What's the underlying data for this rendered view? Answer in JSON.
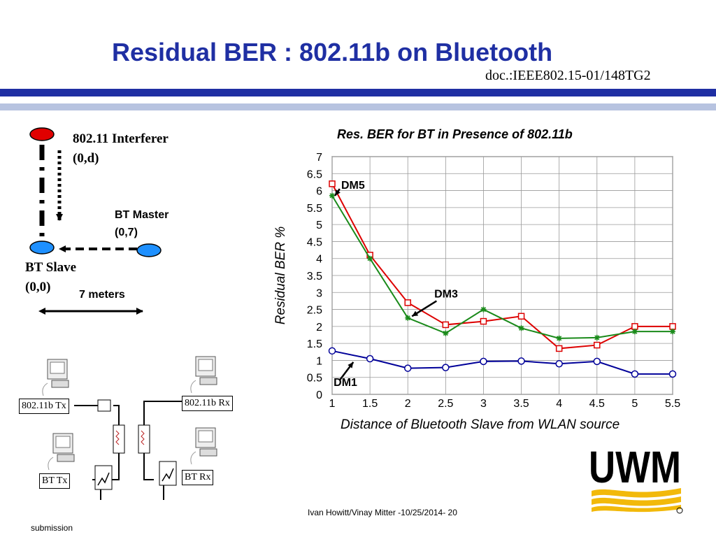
{
  "header": {
    "title": "Residual BER : 802.11b on Bluetooth",
    "doc_id": "doc.:IEEE802.15-01/148TG2"
  },
  "diagram": {
    "interferer_label": "802.11 Interferer",
    "interferer_coord": "(0,d)",
    "master_label": "BT Master",
    "master_coord": "(0,7)",
    "slave_label": "BT Slave",
    "slave_coord": "(0,0)",
    "distance_label": "7 meters",
    "colors": {
      "interferer": "#e00000",
      "bt_node": "#1e90ff"
    }
  },
  "network": {
    "wlan_tx": "802.11b Tx",
    "wlan_rx": "802.11b Rx",
    "bt_tx": "BT Tx",
    "bt_rx": "BT  Rx"
  },
  "chart_data": {
    "type": "line",
    "title": "Res. BER for BT in Presence of 802.11b",
    "xlabel": "Distance of Bluetooth Slave from WLAN source",
    "ylabel": "Residual BER %",
    "x_ticks": [
      "1",
      "1.5",
      "2",
      "2.5",
      "3",
      "3.5",
      "4",
      "4.5",
      "5",
      "5.5"
    ],
    "y_ticks": [
      "0",
      "0.5",
      "1",
      "1.5",
      "2",
      "2.5",
      "3",
      "3.5",
      "4",
      "4.5",
      "5",
      "5.5",
      "6",
      "6.5",
      "7"
    ],
    "xlim": [
      1,
      5.5
    ],
    "ylim": [
      0,
      7
    ],
    "grid": true,
    "x": [
      1,
      1.5,
      2,
      2.5,
      3,
      3.5,
      4,
      4.5,
      5,
      5.5
    ],
    "series": [
      {
        "name": "DM5",
        "color": "#dd0000",
        "marker": "square",
        "values": [
          6.2,
          4.1,
          2.7,
          2.05,
          2.15,
          2.3,
          1.35,
          1.45,
          2.0,
          2.0
        ]
      },
      {
        "name": "",
        "color": "#1a8a1a",
        "marker": "star",
        "values": [
          5.85,
          4.0,
          2.25,
          1.8,
          2.5,
          1.95,
          1.65,
          1.67,
          1.85,
          1.85
        ]
      },
      {
        "name": "DM1",
        "color": "#000099",
        "marker": "circle",
        "values": [
          1.28,
          1.05,
          0.77,
          0.79,
          0.97,
          0.98,
          0.9,
          0.97,
          0.6,
          0.6
        ]
      }
    ],
    "annotations": [
      "DM5",
      "DM3",
      "DM1"
    ]
  },
  "footer": {
    "text": "Ivan Howitt/Vinay Mitter -10/25/2014- 20",
    "submission": "submission"
  },
  "logo": {
    "text": "UWM"
  }
}
